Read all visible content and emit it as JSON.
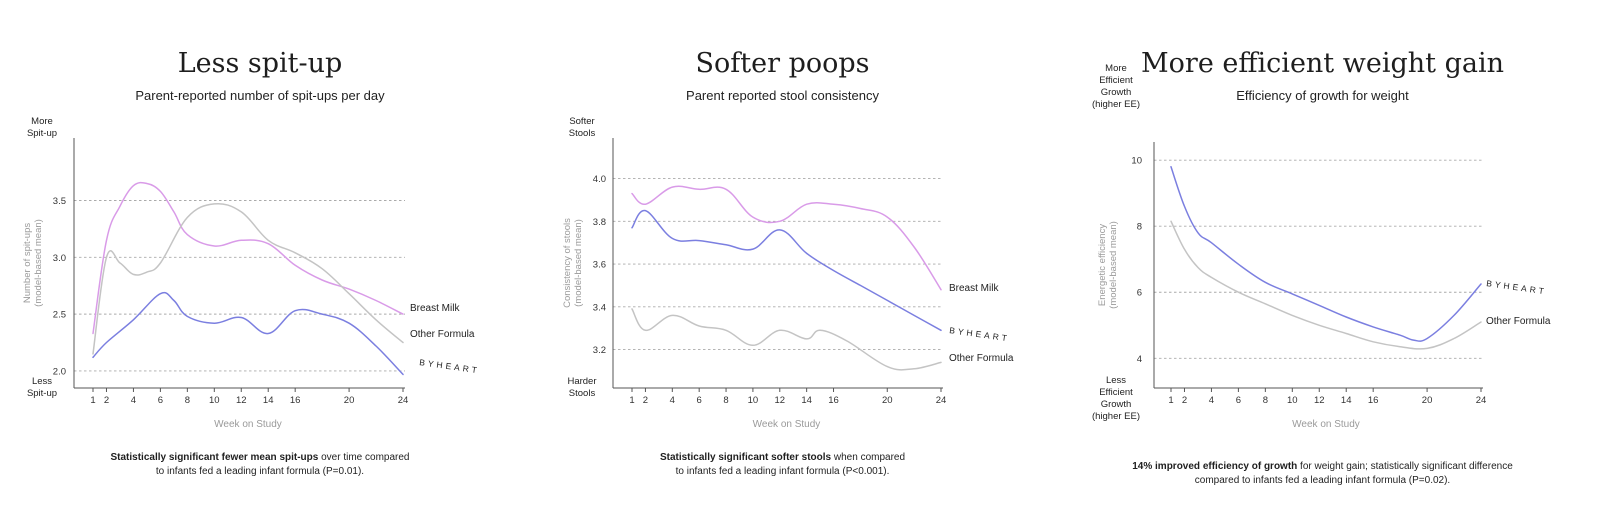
{
  "colors": {
    "byheart": "#7b7fe0",
    "breast_milk": "#d99be8",
    "other_formula": "#c4c4c4",
    "grid": "#aaaaaa",
    "axis": "#555555",
    "muted": "#9a9a9a"
  },
  "panels": [
    {
      "title": "Less spit-up",
      "subtitle": "Parent-reported number of spit-ups per day",
      "caption_bold": "Statistically significant fewer mean spit-ups",
      "caption_rest": " over time compared",
      "caption_line2": "to infants fed a leading infant formula (P=0.01).",
      "top_label": [
        "More",
        "Spit-up"
      ],
      "bottom_label": [
        "Less",
        "Spit-up"
      ],
      "ylabel": [
        "Number of spit-ups",
        "(model-based mean)"
      ],
      "xlabel": "Week on Study"
    },
    {
      "title": "Softer poops",
      "subtitle": "Parent reported stool consistency",
      "caption_bold": "Statistically significant softer stools",
      "caption_rest": " when compared",
      "caption_line2": "to infants fed a leading infant formula (P<0.001).",
      "top_label": [
        "Softer",
        "Stools"
      ],
      "bottom_label": [
        "Harder",
        "Stools"
      ],
      "ylabel": [
        "Consistency of stools",
        "(model-based mean)"
      ],
      "xlabel": "Week on Study"
    },
    {
      "title": "More efficient weight gain",
      "subtitle": "Efficiency of growth for weight",
      "caption_bold": "14% improved efficiency of growth",
      "caption_rest": " for weight gain; statistically significant difference",
      "caption_line2": "compared to infants fed a leading infant formula (P=0.02).",
      "top_label": [
        "More",
        "Efficient",
        "Growth",
        "(higher EE)"
      ],
      "bottom_label": [
        "Less",
        "Efficient",
        "Growth",
        "(higher EE)"
      ],
      "ylabel": [
        "Energetic efficiency",
        "(model-based mean)"
      ],
      "xlabel": "Week on Study"
    }
  ],
  "chart_data": [
    {
      "type": "line",
      "title": "Less spit-up",
      "xlabel": "Week on Study",
      "ylabel": "Number of spit-ups (model-based mean)",
      "x_ticks": [
        1,
        2,
        4,
        6,
        8,
        10,
        12,
        14,
        16,
        20,
        24
      ],
      "y_ticks": [
        "2.0",
        "2.5",
        "3.0",
        "3.5"
      ],
      "xlim": [
        0,
        24.5
      ],
      "ylim": [
        1.85,
        4.05
      ],
      "series": [
        {
          "name": "Breast Milk",
          "label": "Breast Milk",
          "color_key": "breast_milk",
          "x": [
            1,
            2,
            3,
            4,
            5,
            6,
            7,
            8,
            10,
            12,
            14,
            16,
            18,
            20,
            22,
            24
          ],
          "y": [
            2.33,
            3.15,
            3.45,
            3.63,
            3.65,
            3.58,
            3.4,
            3.2,
            3.1,
            3.15,
            3.12,
            2.93,
            2.8,
            2.72,
            2.62,
            2.5
          ]
        },
        {
          "name": "Other Formula",
          "label": "Other Formula",
          "color_key": "other_formula",
          "x": [
            1,
            2,
            3,
            4,
            5,
            6,
            8,
            10,
            12,
            14,
            16,
            18,
            20,
            22,
            24
          ],
          "y": [
            2.15,
            3.0,
            2.95,
            2.85,
            2.87,
            2.95,
            3.35,
            3.47,
            3.4,
            3.15,
            3.04,
            2.9,
            2.68,
            2.45,
            2.25
          ]
        },
        {
          "name": "BYHEART",
          "label": "BYHEART",
          "color_key": "byheart",
          "x": [
            1,
            2,
            4,
            6,
            7,
            8,
            10,
            12,
            14,
            16,
            18,
            20,
            22,
            24
          ],
          "y": [
            2.12,
            2.25,
            2.45,
            2.68,
            2.62,
            2.48,
            2.42,
            2.47,
            2.33,
            2.53,
            2.5,
            2.42,
            2.22,
            1.97
          ]
        }
      ]
    },
    {
      "type": "line",
      "title": "Softer poops",
      "xlabel": "Week on Study",
      "ylabel": "Consistency of stools (model-based mean)",
      "x_ticks": [
        1,
        2,
        4,
        6,
        8,
        10,
        12,
        14,
        16,
        20,
        24
      ],
      "y_ticks": [
        "3.2",
        "3.4",
        "3.6",
        "3.8",
        "4.0"
      ],
      "xlim": [
        0,
        24.5
      ],
      "ylim": [
        3.02,
        4.19
      ],
      "series": [
        {
          "name": "Breast Milk",
          "label": "Breast Milk",
          "color_key": "breast_milk",
          "x": [
            1,
            2,
            4,
            6,
            8,
            10,
            12,
            14,
            16,
            18,
            20,
            22,
            24
          ],
          "y": [
            3.93,
            3.88,
            3.96,
            3.95,
            3.95,
            3.82,
            3.8,
            3.88,
            3.88,
            3.86,
            3.82,
            3.68,
            3.48
          ]
        },
        {
          "name": "BYHEART",
          "label": "BYHEART",
          "color_key": "byheart",
          "x": [
            1,
            2,
            4,
            6,
            8,
            10,
            12,
            14,
            16,
            18,
            20,
            22,
            24
          ],
          "y": [
            3.77,
            3.85,
            3.72,
            3.71,
            3.69,
            3.67,
            3.76,
            3.65,
            3.57,
            3.5,
            3.43,
            3.36,
            3.29
          ]
        },
        {
          "name": "Other Formula",
          "label": "Other Formula",
          "color_key": "other_formula",
          "x": [
            1,
            2,
            4,
            6,
            8,
            10,
            12,
            14,
            15,
            17,
            20,
            22,
            24
          ],
          "y": [
            3.39,
            3.29,
            3.36,
            3.31,
            3.29,
            3.22,
            3.29,
            3.25,
            3.29,
            3.24,
            3.12,
            3.11,
            3.14
          ]
        }
      ]
    },
    {
      "type": "line",
      "title": "More efficient weight gain",
      "xlabel": "Week on Study",
      "ylabel": "Energetic efficiency (model-based mean)",
      "x_ticks": [
        1,
        2,
        4,
        6,
        8,
        10,
        12,
        14,
        16,
        20,
        24
      ],
      "y_ticks": [
        "4",
        "6",
        "8",
        "10"
      ],
      "xlim": [
        0,
        24.5
      ],
      "ylim": [
        3.1,
        10.55
      ],
      "series": [
        {
          "name": "BYHEART",
          "label": "BYHEART",
          "color_key": "byheart",
          "x": [
            1,
            2,
            3,
            4,
            6,
            8,
            10,
            12,
            14,
            16,
            18,
            19,
            20,
            22,
            24
          ],
          "y": [
            9.8,
            8.6,
            7.8,
            7.5,
            6.85,
            6.3,
            5.95,
            5.6,
            5.25,
            4.95,
            4.7,
            4.55,
            4.6,
            5.3,
            6.25
          ]
        },
        {
          "name": "Other Formula",
          "label": "Other Formula",
          "color_key": "other_formula",
          "x": [
            1,
            2,
            3,
            4,
            6,
            8,
            10,
            12,
            14,
            16,
            18,
            20,
            22,
            24
          ],
          "y": [
            8.15,
            7.3,
            6.75,
            6.45,
            6.0,
            5.65,
            5.3,
            5.0,
            4.75,
            4.5,
            4.35,
            4.3,
            4.6,
            5.1
          ]
        }
      ]
    }
  ]
}
